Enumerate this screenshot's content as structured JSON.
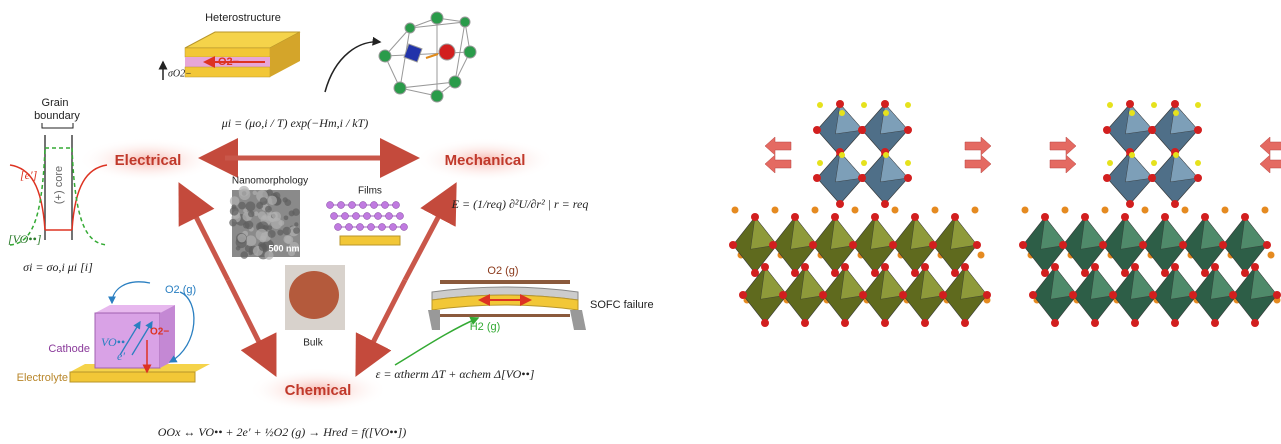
{
  "heterostructure": {
    "title": "Heterostructure",
    "sigma": "σO2−",
    "ion": "O2−"
  },
  "mobility_equation": "μi = (μo,i / T) exp(−Hm,i / kT)",
  "grain_boundary": {
    "title_top": "Grain",
    "title_bottom": "boundary",
    "electron": "[e′]",
    "core": "(+) core",
    "vacancy": "[VO••]",
    "conductivity": "σi = σo,i μi [i]"
  },
  "nodes": [
    "Electrical",
    "Mechanical",
    "Chemical"
  ],
  "samples": {
    "nanomorphology": "Nanomorphology",
    "scale": "500 nm",
    "films": "Films",
    "bulk": "Bulk"
  },
  "modulus_equation": "E = (1/req) ∂²U/∂r² | r = req",
  "sofc": {
    "oxygen": "O2 (g)",
    "hydrogen": "H2 (g)",
    "label": "SOFC failure",
    "strain": "ε = αtherm ΔT + αchem Δ[VO••]"
  },
  "cathode": {
    "gas": "O2 (g)",
    "vacancy": "VO••",
    "electron": "e′",
    "ion": "O2−",
    "cathode": "Cathode",
    "electrolyte": "Electrolyte"
  },
  "reaction": "OOx ↔ VO•• + 2e′ + ½O2 (g) → Hred = f([VO••])"
}
